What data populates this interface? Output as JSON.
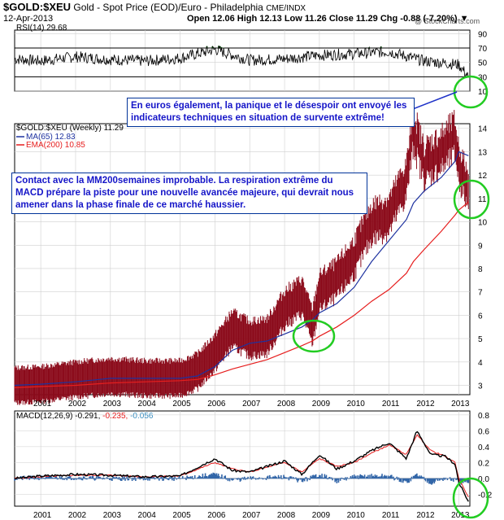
{
  "header": {
    "symbol": "$GOLD:$XEU",
    "description": "Gold - Spot Price (EOD)/Euro - Philadelphia",
    "exchange": "CME/INDX",
    "date": "12-Apr-2013",
    "ohlc": "Open 12.06  High 12.13  Low 11.26  Close 11.29  Chg -0.88 (-7.20%) ▼",
    "watermark": "@ StockCharts.com"
  },
  "annotations": {
    "rsi_note": "En euros également, la panique et le désespoir ont envoyé les indicateurs techniques en situation de survente extrême!",
    "main_note": "Contact avec la MM200semaines improbable. La respiration extrême du MACD prépare la piste pour une nouvelle avancée majeure, qui devrait nous amener dans la phase finale de ce marché haussier."
  },
  "colors": {
    "price": "#8b0a1a",
    "ma65": "#1e32a0",
    "ema200": "#e61e1e",
    "rsi": "#000000",
    "rsi_fill": "#2e8b2e",
    "macd": "#000000",
    "signal": "#e61e1e",
    "hist": "#3366a8",
    "circle": "#22cc22"
  },
  "chart_data": [
    {
      "type": "line",
      "name": "rsi-panel",
      "legend": "RSI(14) 29.68",
      "ylim": [
        10,
        95
      ],
      "yticks": [
        10,
        30,
        50,
        70,
        90
      ],
      "guides": [
        30,
        70
      ],
      "x": [
        2000.25,
        2001,
        2002,
        2003,
        2004,
        2005,
        2006,
        2007,
        2008,
        2009,
        2010,
        2011,
        2012,
        2013,
        2013.28
      ],
      "values": [
        55,
        52,
        58,
        54,
        52,
        56,
        68,
        53,
        55,
        60,
        62,
        65,
        52,
        47,
        29.68
      ]
    },
    {
      "type": "line",
      "name": "price-panel",
      "legend": [
        "$GOLD:$XEU (Weekly) 11.29",
        "MA(65) 12.83",
        "EMA(200) 10.85"
      ],
      "ylim": [
        2.6,
        14.2
      ],
      "yticks": [
        3,
        4,
        5,
        6,
        7,
        8,
        9,
        10,
        11,
        12,
        13,
        14
      ],
      "x": [
        2000.25,
        2001,
        2002,
        2003,
        2004,
        2005,
        2005.5,
        2006,
        2006.5,
        2007,
        2007.5,
        2008,
        2008.5,
        2008.8,
        2009,
        2009.5,
        2010,
        2010.5,
        2011,
        2011.5,
        2011.7,
        2012,
        2012.5,
        2012.9,
        2013,
        2013.28
      ],
      "series": [
        {
          "name": "$GOLD:$XEU",
          "values": [
            3.0,
            3.05,
            3.25,
            3.4,
            3.3,
            3.3,
            3.6,
            4.4,
            5.4,
            5.0,
            5.1,
            6.3,
            6.8,
            5.5,
            7.0,
            7.5,
            8.5,
            10.0,
            10.3,
            11.8,
            14.0,
            12.5,
            13.0,
            13.6,
            12.5,
            11.29
          ]
        },
        {
          "name": "MA(65)",
          "values": [
            3.0,
            3.05,
            3.15,
            3.3,
            3.3,
            3.3,
            3.4,
            3.8,
            4.5,
            4.8,
            4.9,
            5.2,
            5.5,
            5.8,
            6.1,
            6.5,
            7.2,
            8.3,
            9.2,
            10.1,
            10.8,
            11.3,
            11.9,
            12.6,
            13.0,
            12.83
          ]
        },
        {
          "name": "EMA(200)",
          "values": [
            2.9,
            2.95,
            3.0,
            3.1,
            3.15,
            3.2,
            3.25,
            3.45,
            3.7,
            3.9,
            4.1,
            4.4,
            4.7,
            4.9,
            5.1,
            5.5,
            6.0,
            6.6,
            7.1,
            7.8,
            8.3,
            8.8,
            9.6,
            10.3,
            10.5,
            10.85
          ]
        }
      ]
    },
    {
      "type": "line",
      "name": "macd-panel",
      "legend": [
        "MACD(12,26,9) -0.291",
        "-0.235",
        "-0.056"
      ],
      "ylim": [
        -0.35,
        0.85
      ],
      "yticks": [
        -0.2,
        0.0,
        0.2,
        0.4,
        0.6,
        0.8
      ],
      "x": [
        2000.25,
        2001,
        2002,
        2003,
        2004,
        2005,
        2006,
        2006.5,
        2007,
        2008,
        2008.5,
        2009,
        2009.5,
        2010,
        2010.5,
        2011,
        2011.5,
        2011.8,
        2012.2,
        2012.6,
        2012.9,
        2013,
        2013.28
      ],
      "series": [
        {
          "name": "MACD",
          "values": [
            0.0,
            0.03,
            0.05,
            0.04,
            0.02,
            0.03,
            0.25,
            0.1,
            0.08,
            0.22,
            0.05,
            0.3,
            0.12,
            0.22,
            0.35,
            0.45,
            0.25,
            0.6,
            0.3,
            0.28,
            0.18,
            -0.05,
            -0.291
          ]
        },
        {
          "name": "Signal",
          "values": [
            0.0,
            0.02,
            0.04,
            0.04,
            0.02,
            0.03,
            0.2,
            0.12,
            0.08,
            0.2,
            0.08,
            0.25,
            0.15,
            0.2,
            0.32,
            0.42,
            0.3,
            0.55,
            0.35,
            0.28,
            0.2,
            0.0,
            -0.235
          ]
        },
        {
          "name": "Histogram",
          "values": [
            0.0,
            0.01,
            0.01,
            0.0,
            0.0,
            0.0,
            0.05,
            -0.02,
            0.0,
            0.02,
            -0.03,
            0.05,
            -0.03,
            0.02,
            0.03,
            0.03,
            -0.05,
            0.05,
            -0.05,
            0.0,
            -0.02,
            -0.05,
            -0.056
          ]
        }
      ]
    }
  ],
  "x_axis": {
    "years": [
      "2001",
      "2002",
      "2003",
      "2004",
      "2005",
      "2006",
      "2007",
      "2008",
      "2009",
      "2010",
      "2011",
      "2012",
      "2013"
    ]
  }
}
